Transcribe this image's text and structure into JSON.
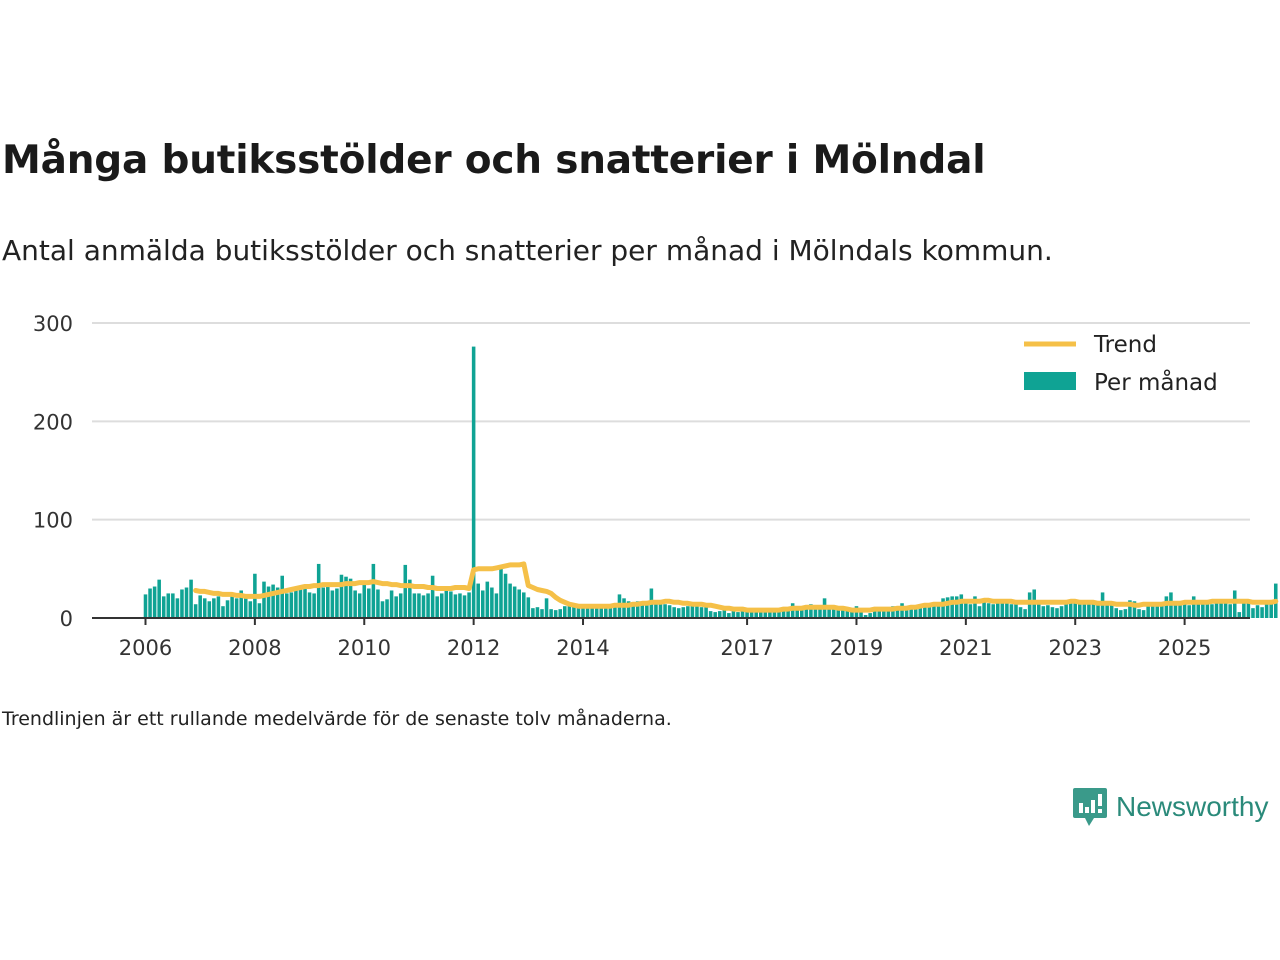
{
  "header": {
    "title": "Många butiksstölder och snatterier i Mölndal",
    "subtitle": "Antal anmälda butiksstölder och snatterier per månad i Mölndals kommun."
  },
  "footer": {
    "note": "Trendlinjen är ett rullande medelvärde för de senaste tolv månaderna.",
    "brand": "Newsworthy"
  },
  "colors": {
    "bars": "#0fa394",
    "trend": "#f5c048",
    "grid": "#dddddd",
    "axis": "#333333",
    "brand": "#2a8a7a"
  },
  "chart_data": {
    "type": "bar",
    "start": "2006-01",
    "x_ticks": [
      "2006",
      "2008",
      "2010",
      "2012",
      "2014",
      "2017",
      "2019",
      "2021",
      "2023",
      "2025"
    ],
    "y_ticks": [
      0,
      100,
      200,
      300
    ],
    "ylim": [
      0,
      300
    ],
    "grid": true,
    "legend_position": "top-right",
    "series": [
      {
        "name": "Per månad",
        "kind": "bar",
        "values": [
          24,
          30,
          32,
          39,
          22,
          25,
          25,
          20,
          29,
          31,
          39,
          14,
          23,
          20,
          17,
          20,
          22,
          12,
          18,
          22,
          20,
          28,
          23,
          17,
          45,
          15,
          37,
          32,
          34,
          31,
          43,
          25,
          26,
          29,
          33,
          30,
          26,
          25,
          55,
          31,
          33,
          28,
          30,
          44,
          42,
          40,
          28,
          25,
          35,
          30,
          55,
          29,
          17,
          19,
          28,
          22,
          25,
          54,
          39,
          25,
          25,
          23,
          25,
          43,
          22,
          25,
          28,
          27,
          24,
          25,
          23,
          26,
          276,
          35,
          28,
          37,
          31,
          25,
          50,
          45,
          35,
          32,
          29,
          26,
          21,
          10,
          11,
          9,
          20,
          9,
          8,
          9,
          12,
          14,
          13,
          11,
          11,
          10,
          11,
          10,
          12,
          12,
          13,
          12,
          24,
          20,
          17,
          16,
          17,
          15,
          14,
          30,
          18,
          16,
          14,
          13,
          11,
          10,
          11,
          12,
          13,
          12,
          11,
          11,
          7,
          6,
          7,
          8,
          5,
          9,
          6,
          7,
          8,
          9,
          6,
          7,
          8,
          9,
          10,
          8,
          9,
          10,
          15,
          9,
          11,
          12,
          14,
          10,
          9,
          20,
          12,
          10,
          11,
          11,
          10,
          9,
          12,
          8,
          3,
          5,
          9,
          7,
          8,
          10,
          12,
          11,
          15,
          9,
          11,
          12,
          10,
          12,
          13,
          15,
          14,
          20,
          21,
          22,
          22,
          24,
          18,
          14,
          22,
          12,
          16,
          15,
          14,
          17,
          18,
          16,
          14,
          14,
          11,
          9,
          26,
          29,
          14,
          12,
          13,
          11,
          10,
          12,
          14,
          15,
          15,
          14,
          17,
          17,
          16,
          14,
          26,
          17,
          16,
          10,
          8,
          9,
          18,
          17,
          9,
          8,
          15,
          14,
          12,
          13,
          22,
          26,
          14,
          15,
          14,
          13,
          22,
          14,
          15,
          16,
          14,
          18,
          15,
          16,
          14,
          28,
          6,
          16,
          15,
          10,
          13,
          11,
          17,
          14,
          35
        ]
      },
      {
        "name": "Trend",
        "kind": "line",
        "values": [
          null,
          null,
          null,
          null,
          null,
          null,
          null,
          null,
          null,
          null,
          null,
          28,
          27,
          27,
          26,
          25,
          25,
          24,
          24,
          24,
          23,
          23,
          22,
          22,
          22,
          22,
          23,
          24,
          25,
          26,
          27,
          28,
          29,
          30,
          31,
          32,
          32,
          33,
          33,
          34,
          34,
          34,
          34,
          34,
          35,
          35,
          35,
          36,
          36,
          36,
          37,
          36,
          35,
          35,
          34,
          34,
          33,
          33,
          33,
          32,
          32,
          32,
          31,
          31,
          30,
          30,
          30,
          30,
          31,
          31,
          31,
          30,
          49,
          50,
          50,
          50,
          50,
          51,
          52,
          53,
          54,
          54,
          54,
          55,
          33,
          31,
          29,
          28,
          27,
          25,
          21,
          18,
          16,
          14,
          13,
          12,
          12,
          12,
          12,
          12,
          12,
          12,
          12,
          13,
          13,
          13,
          13,
          14,
          14,
          15,
          15,
          16,
          16,
          16,
          17,
          17,
          16,
          16,
          15,
          15,
          14,
          14,
          14,
          13,
          13,
          12,
          11,
          10,
          10,
          9,
          9,
          9,
          8,
          8,
          8,
          8,
          8,
          8,
          8,
          8,
          9,
          9,
          10,
          10,
          10,
          11,
          11,
          11,
          11,
          11,
          11,
          11,
          10,
          10,
          9,
          8,
          8,
          8,
          8,
          8,
          9,
          9,
          9,
          9,
          9,
          10,
          10,
          10,
          11,
          11,
          12,
          13,
          13,
          14,
          14,
          14,
          15,
          16,
          16,
          17,
          17,
          17,
          17,
          17,
          18,
          18,
          17,
          17,
          17,
          17,
          17,
          16,
          16,
          16,
          16,
          16,
          16,
          16,
          16,
          16,
          16,
          16,
          16,
          17,
          17,
          16,
          16,
          16,
          16,
          15,
          15,
          15,
          15,
          14,
          14,
          14,
          14,
          13,
          13,
          14,
          14,
          14,
          14,
          14,
          15,
          15,
          15,
          15,
          16,
          16,
          16,
          16,
          16,
          16,
          17,
          17,
          17,
          17,
          17,
          17,
          17,
          17,
          17,
          16,
          16,
          16,
          16,
          16,
          17
        ]
      }
    ]
  }
}
